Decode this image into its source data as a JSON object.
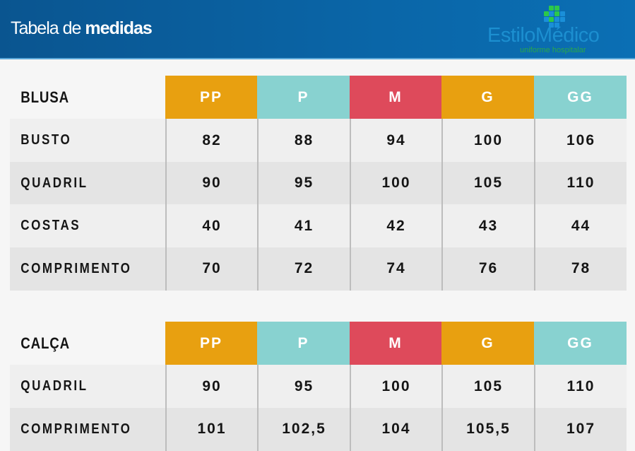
{
  "header": {
    "title_light": "Tabela de ",
    "title_bold": "medidas"
  },
  "logo": {
    "name": "EstiloMédico",
    "tagline": "uniforme hospitalar"
  },
  "colors": {
    "PP": "#e8a010",
    "P": "#88d2d0",
    "M": "#de4a5b",
    "G": "#e8a010",
    "GG": "#88d2d0",
    "header_blue": "#0a62a2"
  },
  "sizes": [
    "PP",
    "P",
    "M",
    "G",
    "GG"
  ],
  "tables": [
    {
      "title": "BLUSA",
      "rows": [
        {
          "label": "BUSTO",
          "values": [
            "82",
            "88",
            "94",
            "100",
            "106"
          ]
        },
        {
          "label": "QUADRIL",
          "values": [
            "90",
            "95",
            "100",
            "105",
            "110"
          ]
        },
        {
          "label": "COSTAS",
          "values": [
            "40",
            "41",
            "42",
            "43",
            "44"
          ]
        },
        {
          "label": "COMPRIMENTO",
          "values": [
            "70",
            "72",
            "74",
            "76",
            "78"
          ]
        }
      ]
    },
    {
      "title": "CALÇA",
      "rows": [
        {
          "label": "QUADRIL",
          "values": [
            "90",
            "95",
            "100",
            "105",
            "110"
          ]
        },
        {
          "label": "COMPRIMENTO",
          "values": [
            "101",
            "102,5",
            "104",
            "105,5",
            "107"
          ]
        }
      ]
    }
  ]
}
